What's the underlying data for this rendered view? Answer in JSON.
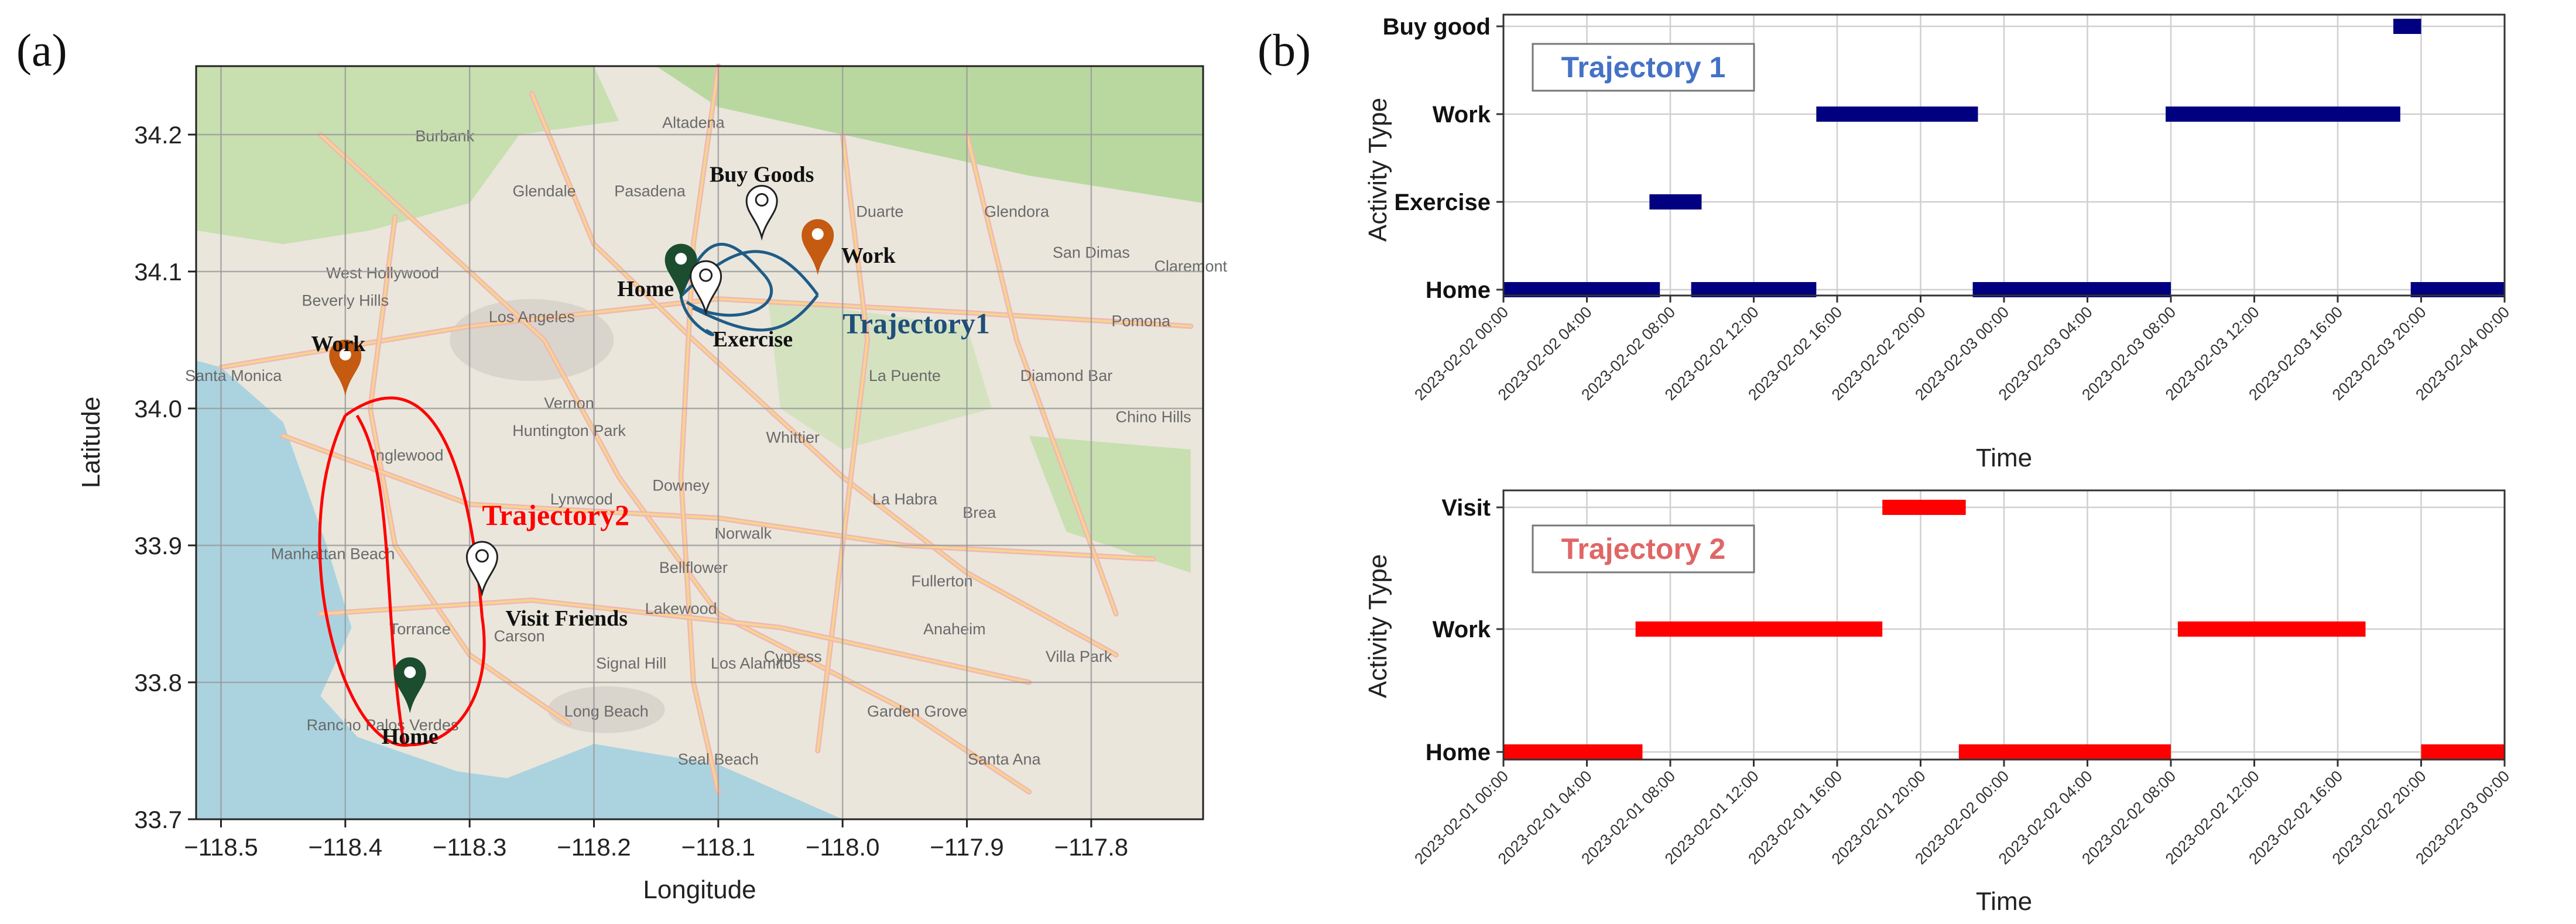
{
  "panels": {
    "a": {
      "label": "(a)"
    },
    "b": {
      "label": "(b)"
    }
  },
  "colors": {
    "traj1": "#000080",
    "traj1_text": "#1f4e79",
    "traj1_box_text": "#4472c4",
    "traj2": "#ff0000",
    "traj2_box_text": "#e06666",
    "home_pin": "#1b4d2e",
    "work_pin": "#c55a11"
  },
  "chart_data": [
    {
      "type": "scatter",
      "title": "",
      "xlabel": "Longitude",
      "ylabel": "Latitude",
      "xlim": [
        -118.52,
        -117.71
      ],
      "ylim": [
        33.7,
        34.25
      ],
      "xticks": [
        "−118.5",
        "−118.4",
        "−118.3",
        "−118.2",
        "−118.1",
        "−118.0",
        "−117.9",
        "−117.8"
      ],
      "xtick_values": [
        -118.5,
        -118.4,
        -118.3,
        -118.2,
        -118.1,
        -118.0,
        -117.9,
        -117.8
      ],
      "yticks": [
        "33.7",
        "33.8",
        "33.9",
        "34.0",
        "34.1",
        "34.2"
      ],
      "ytick_values": [
        33.7,
        33.8,
        33.9,
        34.0,
        34.1,
        34.2
      ],
      "grid": true,
      "base_map_place_names": [
        {
          "name": "Burbank",
          "x": -118.32,
          "y": 34.195
        },
        {
          "name": "Glendale",
          "x": -118.24,
          "y": 34.155
        },
        {
          "name": "Pasadena",
          "x": -118.155,
          "y": 34.155
        },
        {
          "name": "Altadena",
          "x": -118.12,
          "y": 34.205
        },
        {
          "name": "Duarte",
          "x": -117.97,
          "y": 34.14
        },
        {
          "name": "Glendora",
          "x": -117.86,
          "y": 34.14
        },
        {
          "name": "San Dimas",
          "x": -117.8,
          "y": 34.11
        },
        {
          "name": "Claremont",
          "x": -117.72,
          "y": 34.1
        },
        {
          "name": "Pomona",
          "x": -117.76,
          "y": 34.06
        },
        {
          "name": "West Hollywood",
          "x": -118.37,
          "y": 34.095
        },
        {
          "name": "Beverly Hills",
          "x": -118.4,
          "y": 34.075
        },
        {
          "name": "Los Angeles",
          "x": -118.25,
          "y": 34.063
        },
        {
          "name": "Santa Monica",
          "x": -118.49,
          "y": 34.02
        },
        {
          "name": "Inglewood",
          "x": -118.35,
          "y": 33.962
        },
        {
          "name": "Vernon",
          "x": -118.22,
          "y": 34.0
        },
        {
          "name": "Huntington Park",
          "x": -118.22,
          "y": 33.98
        },
        {
          "name": "Downey",
          "x": -118.13,
          "y": 33.94
        },
        {
          "name": "Whittier",
          "x": -118.04,
          "y": 33.975
        },
        {
          "name": "La Puente",
          "x": -117.95,
          "y": 34.02
        },
        {
          "name": "Diamond Bar",
          "x": -117.82,
          "y": 34.02
        },
        {
          "name": "Chino Hills",
          "x": -117.75,
          "y": 33.99
        },
        {
          "name": "Norwalk",
          "x": -118.08,
          "y": 33.905
        },
        {
          "name": "La Habra",
          "x": -117.95,
          "y": 33.93
        },
        {
          "name": "Brea",
          "x": -117.89,
          "y": 33.92
        },
        {
          "name": "Fullerton",
          "x": -117.92,
          "y": 33.87
        },
        {
          "name": "Manhattan Beach",
          "x": -118.41,
          "y": 33.89
        },
        {
          "name": "Lakewood",
          "x": -118.13,
          "y": 33.85
        },
        {
          "name": "Cypress",
          "x": -118.04,
          "y": 33.815
        },
        {
          "name": "Anaheim",
          "x": -117.91,
          "y": 33.835
        },
        {
          "name": "Torrance",
          "x": -118.34,
          "y": 33.835
        },
        {
          "name": "Carson",
          "x": -118.26,
          "y": 33.83
        },
        {
          "name": "Signal Hill",
          "x": -118.17,
          "y": 33.81
        },
        {
          "name": "Los Alamitos",
          "x": -118.07,
          "y": 33.81
        },
        {
          "name": "Villa Park",
          "x": -117.81,
          "y": 33.815
        },
        {
          "name": "Long Beach",
          "x": -118.19,
          "y": 33.775
        },
        {
          "name": "Garden Grove",
          "x": -117.94,
          "y": 33.775
        },
        {
          "name": "Seal Beach",
          "x": -118.1,
          "y": 33.74
        },
        {
          "name": "Santa Ana",
          "x": -117.87,
          "y": 33.74
        },
        {
          "name": "Rancho Palos Verdes",
          "x": -118.37,
          "y": 33.765
        },
        {
          "name": "Bellflower",
          "x": -118.12,
          "y": 33.88
        },
        {
          "name": "Lynwood",
          "x": -118.21,
          "y": 33.93
        }
      ],
      "locations": [
        {
          "name": "Buy Goods",
          "x": -118.065,
          "y": 34.125,
          "type": "visit",
          "trajectory": "Trajectory1"
        },
        {
          "name": "Work",
          "x": -118.02,
          "y": 34.1,
          "type": "work",
          "trajectory": "Trajectory1"
        },
        {
          "name": "Home",
          "x": -118.13,
          "y": 34.082,
          "type": "home",
          "trajectory": "Trajectory1"
        },
        {
          "name": "Exercise",
          "x": -118.11,
          "y": 34.07,
          "type": "visit",
          "trajectory": "Trajectory1"
        },
        {
          "name": "Work",
          "x": -118.4,
          "y": 34.012,
          "type": "work",
          "trajectory": "Trajectory2"
        },
        {
          "name": "Visit Friends",
          "x": -118.29,
          "y": 33.865,
          "type": "visit",
          "trajectory": "Trajectory2"
        },
        {
          "name": "Home",
          "x": -118.348,
          "y": 33.78,
          "type": "home",
          "trajectory": "Trajectory2"
        }
      ],
      "series": [
        {
          "name": "Trajectory1",
          "label_x": -118.0,
          "label_y": 34.055
        },
        {
          "name": "Trajectory2",
          "label_x": -118.29,
          "label_y": 33.915
        }
      ]
    },
    {
      "type": "bar",
      "orientation": "horizontal-timeline",
      "title": "",
      "box_label": "Trajectory 1",
      "xlabel": "Time",
      "ylabel": "Activity Type",
      "categories": [
        "Home",
        "Exercise",
        "Work",
        "Buy good"
      ],
      "xlim": [
        "2023-02-02 00:00",
        "2023-02-04 00:00"
      ],
      "xticks": [
        "2023-02-02 00:00",
        "2023-02-02 04:00",
        "2023-02-02 08:00",
        "2023-02-02 12:00",
        "2023-02-02 16:00",
        "2023-02-02 20:00",
        "2023-02-03 00:00",
        "2023-02-03 04:00",
        "2023-02-03 08:00",
        "2023-02-03 12:00",
        "2023-02-03 16:00",
        "2023-02-03 20:00",
        "2023-02-04 00:00"
      ],
      "grid": true,
      "segments": [
        {
          "activity": "Home",
          "start": "2023-02-02 00:00",
          "end": "2023-02-02 07:30"
        },
        {
          "activity": "Exercise",
          "start": "2023-02-02 07:00",
          "end": "2023-02-02 09:30"
        },
        {
          "activity": "Home",
          "start": "2023-02-02 09:00",
          "end": "2023-02-02 15:00"
        },
        {
          "activity": "Work",
          "start": "2023-02-02 15:00",
          "end": "2023-02-02 22:45"
        },
        {
          "activity": "Home",
          "start": "2023-02-02 22:30",
          "end": "2023-02-03 08:00"
        },
        {
          "activity": "Work",
          "start": "2023-02-03 07:45",
          "end": "2023-02-03 19:00"
        },
        {
          "activity": "Buy good",
          "start": "2023-02-03 18:40",
          "end": "2023-02-03 20:00"
        },
        {
          "activity": "Home",
          "start": "2023-02-03 19:30",
          "end": "2023-02-04 00:00"
        }
      ]
    },
    {
      "type": "bar",
      "orientation": "horizontal-timeline",
      "title": "",
      "box_label": "Trajectory 2",
      "xlabel": "Time",
      "ylabel": "Activity Type",
      "categories": [
        "Home",
        "Work",
        "Visit"
      ],
      "xlim": [
        "2023-02-01 00:00",
        "2023-02-03 00:00"
      ],
      "xticks": [
        "2023-02-01 00:00",
        "2023-02-01 04:00",
        "2023-02-01 08:00",
        "2023-02-01 12:00",
        "2023-02-01 16:00",
        "2023-02-01 20:00",
        "2023-02-02 00:00",
        "2023-02-02 04:00",
        "2023-02-02 08:00",
        "2023-02-02 12:00",
        "2023-02-02 16:00",
        "2023-02-02 20:00",
        "2023-02-03 00:00"
      ],
      "grid": true,
      "segments": [
        {
          "activity": "Home",
          "start": "2023-02-01 00:00",
          "end": "2023-02-01 06:40"
        },
        {
          "activity": "Work",
          "start": "2023-02-01 06:20",
          "end": "2023-02-01 18:10"
        },
        {
          "activity": "Visit",
          "start": "2023-02-01 18:10",
          "end": "2023-02-01 22:10"
        },
        {
          "activity": "Home",
          "start": "2023-02-01 21:50",
          "end": "2023-02-02 08:00"
        },
        {
          "activity": "Work",
          "start": "2023-02-02 08:20",
          "end": "2023-02-02 17:20"
        },
        {
          "activity": "Home",
          "start": "2023-02-02 20:00",
          "end": "2023-02-03 00:00"
        }
      ]
    }
  ]
}
